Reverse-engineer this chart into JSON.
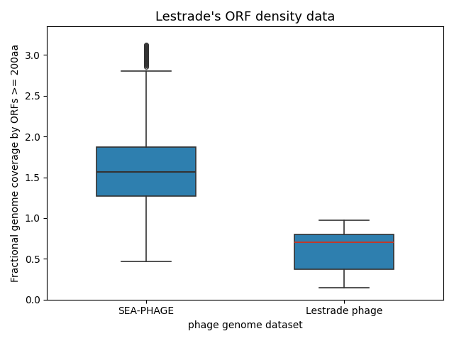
{
  "title": "Lestrade's ORF density data",
  "xlabel": "phage genome dataset",
  "ylabel": "Fractional genome coverage by ORFs >= 200aa",
  "categories": [
    "SEA-PHAGE",
    "Lestrade phage"
  ],
  "sea_phage": {
    "q1": 1.27,
    "median": 1.57,
    "q3": 1.87,
    "whisker_low": 0.47,
    "whisker_high": 2.8,
    "outliers": [
      2.86,
      2.87,
      2.88,
      2.89,
      2.9,
      2.91,
      2.92,
      2.93,
      2.94,
      2.95,
      2.96,
      2.97,
      2.98,
      2.99,
      3.0,
      3.01,
      3.02,
      3.03,
      3.04,
      3.05,
      3.06,
      3.07,
      3.08,
      3.09,
      3.1,
      3.11,
      3.12,
      3.13
    ]
  },
  "lestrade": {
    "q1": 0.37,
    "median": 0.7,
    "q3": 0.8,
    "whisker_low": 0.15,
    "whisker_high": 0.97,
    "outliers": []
  },
  "box_facecolor": "#2e7faf",
  "box_edgecolor": "#333333",
  "median_color_sea": "#333333",
  "median_color_lestrade": "#c0392b",
  "whisker_color": "#333333",
  "cap_color": "#333333",
  "outlier_marker": "o",
  "outlier_facecolor": "none",
  "outlier_edgecolor": "#333333",
  "outlier_size": 4,
  "ylim": [
    0.0,
    3.35
  ],
  "yticks": [
    0.0,
    0.5,
    1.0,
    1.5,
    2.0,
    2.5,
    3.0
  ],
  "figsize": [
    6.4,
    4.8
  ],
  "dpi": 100,
  "title_fontsize": 13,
  "box_width": 0.5,
  "positions": [
    1,
    2
  ]
}
